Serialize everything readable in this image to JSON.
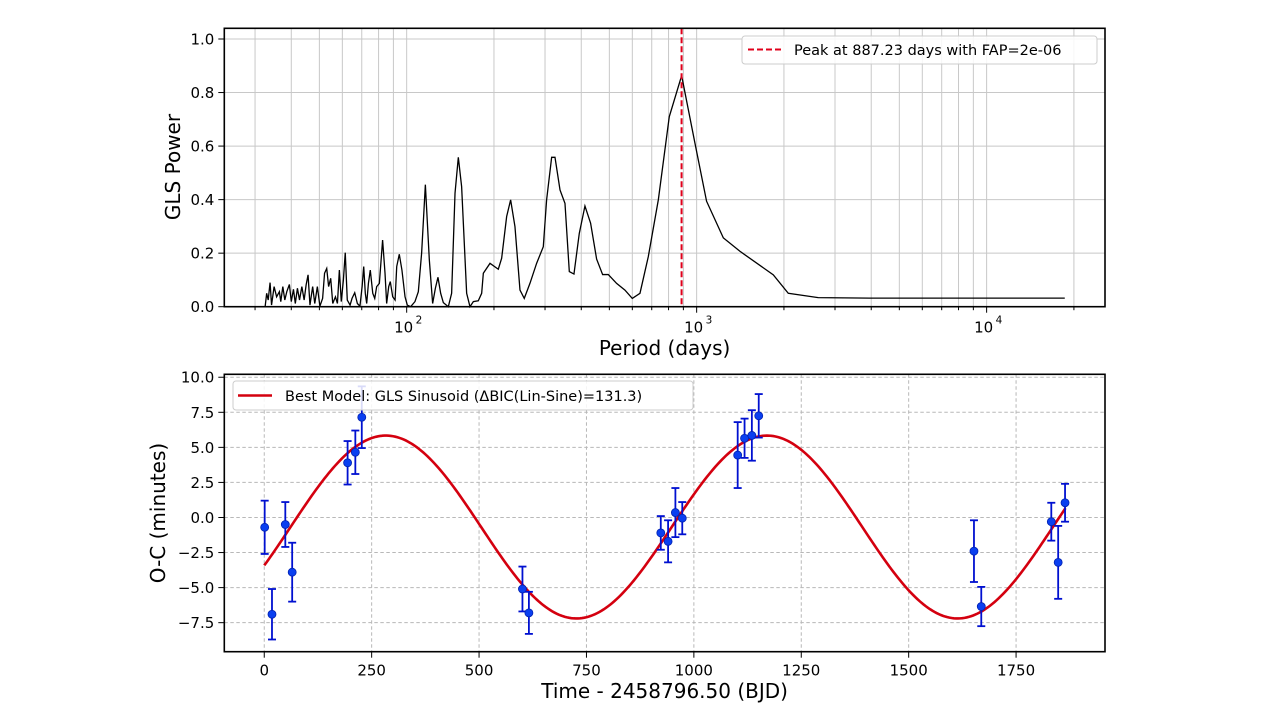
{
  "chart_data": [
    {
      "type": "line",
      "xlabel": "Period (days)",
      "ylabel": "GLS Power",
      "xscale": "log",
      "xlim": [
        23.5,
        25600
      ],
      "ylim": [
        0,
        1.04
      ],
      "xticks": [
        100,
        1000,
        10000
      ],
      "xtick_labels": [
        {
          "base": "10",
          "exp": "2"
        },
        {
          "base": "10",
          "exp": "3"
        },
        {
          "base": "10",
          "exp": "4"
        }
      ],
      "yticks": [
        0,
        0.2,
        0.4,
        0.6,
        0.8,
        1.0
      ],
      "ytick_labels": [
        "0.0",
        "0.2",
        "0.4",
        "0.6",
        "0.8",
        "1.0"
      ],
      "grid": true,
      "legend_position": "top-right",
      "line_color": "#000000",
      "peak": {
        "period": 887.23,
        "label": "Peak at 887.23 days with FAP=2e-06",
        "color": "#e0001b",
        "style": "dashed"
      },
      "series": [
        {
          "points": [
            [
              32.5,
              0.0
            ],
            [
              32.9,
              0.05
            ],
            [
              33.3,
              0.025
            ],
            [
              33.8,
              0.09
            ],
            [
              34.2,
              0.006
            ],
            [
              34.9,
              0.075
            ],
            [
              35.6,
              0.037
            ],
            [
              36.4,
              0.056
            ],
            [
              36.8,
              0.019
            ],
            [
              37.4,
              0.075
            ],
            [
              38.0,
              0.025
            ],
            [
              38.6,
              0.056
            ],
            [
              39.4,
              0.083
            ],
            [
              40.0,
              0.019
            ],
            [
              40.7,
              0.065
            ],
            [
              41.3,
              0.012
            ],
            [
              42.0,
              0.069
            ],
            [
              42.7,
              0.025
            ],
            [
              43.5,
              0.075
            ],
            [
              44.3,
              0.025
            ],
            [
              45.0,
              0.081
            ],
            [
              45.7,
              0.119
            ],
            [
              46.4,
              0.006
            ],
            [
              47.4,
              0.075
            ],
            [
              48.2,
              0.012
            ],
            [
              49.2,
              0.075
            ],
            [
              50.2,
              0.002
            ],
            [
              51.3,
              0.031
            ],
            [
              52.1,
              0.125
            ],
            [
              53.0,
              0.143
            ],
            [
              53.8,
              0.075
            ],
            [
              54.7,
              0.106
            ],
            [
              55.6,
              0.012
            ],
            [
              56.8,
              0.037
            ],
            [
              57.7,
              0.012
            ],
            [
              58.6,
              0.137
            ],
            [
              59.5,
              0.019
            ],
            [
              60.5,
              0.1
            ],
            [
              61.4,
              0.202
            ],
            [
              62.4,
              0.025
            ],
            [
              63.8,
              0.006
            ],
            [
              64.8,
              0.031
            ],
            [
              66.2,
              0.052
            ],
            [
              67.6,
              0.012
            ],
            [
              69.0,
              0.002
            ],
            [
              70.2,
              0.075
            ],
            [
              71.1,
              0.15
            ],
            [
              72.0,
              0.05
            ],
            [
              72.8,
              0.012
            ],
            [
              73.8,
              0.087
            ],
            [
              74.9,
              0.137
            ],
            [
              76.4,
              0.05
            ],
            [
              77.6,
              0.031
            ],
            [
              78.8,
              0.075
            ],
            [
              80.5,
              0.087
            ],
            [
              82.6,
              0.249
            ],
            [
              84.2,
              0.125
            ],
            [
              85.3,
              0.012
            ],
            [
              86.7,
              0.075
            ],
            [
              87.8,
              0.094
            ],
            [
              89.5,
              0.037
            ],
            [
              91.2,
              0.025
            ],
            [
              92.4,
              0.15
            ],
            [
              94.3,
              0.196
            ],
            [
              96.3,
              0.137
            ],
            [
              98.7,
              0.037
            ],
            [
              100.5,
              0.006
            ],
            [
              103.2,
              0.0
            ],
            [
              106.8,
              0.019
            ],
            [
              109.7,
              0.056
            ],
            [
              112.6,
              0.2
            ],
            [
              116.0,
              0.456
            ],
            [
              119.7,
              0.175
            ],
            [
              122.9,
              0.012
            ],
            [
              125.6,
              0.069
            ],
            [
              128.2,
              0.11
            ],
            [
              131.0,
              0.05
            ],
            [
              133.8,
              0.015
            ],
            [
              139.2,
              0.0
            ],
            [
              142.9,
              0.05
            ],
            [
              146.8,
              0.424
            ],
            [
              150.7,
              0.558
            ],
            [
              154.7,
              0.449
            ],
            [
              161.0,
              0.05
            ],
            [
              165.3,
              0.0
            ],
            [
              169.8,
              0.019
            ],
            [
              176.6,
              0.022
            ],
            [
              181.4,
              0.05
            ],
            [
              183.8,
              0.125
            ],
            [
              193.8,
              0.162
            ],
            [
              207.0,
              0.14
            ],
            [
              212.6,
              0.181
            ],
            [
              221.2,
              0.337
            ],
            [
              228.3,
              0.399
            ],
            [
              236.3,
              0.299
            ],
            [
              245.9,
              0.062
            ],
            [
              254.4,
              0.031
            ],
            [
              266.1,
              0.087
            ],
            [
              280.6,
              0.162
            ],
            [
              295.9,
              0.224
            ],
            [
              303.8,
              0.399
            ],
            [
              316.2,
              0.558
            ],
            [
              324.7,
              0.558
            ],
            [
              337.9,
              0.436
            ],
            [
              351.5,
              0.386
            ],
            [
              363.8,
              0.131
            ],
            [
              377.5,
              0.122
            ],
            [
              393.8,
              0.274
            ],
            [
              411.9,
              0.376
            ],
            [
              430.8,
              0.312
            ],
            [
              451.9,
              0.178
            ],
            [
              474.0,
              0.12
            ],
            [
              495.8,
              0.12
            ],
            [
              529.7,
              0.087
            ],
            [
              565.8,
              0.062
            ],
            [
              599.8,
              0.031
            ],
            [
              637.6,
              0.05
            ],
            [
              681.2,
              0.187
            ],
            [
              737.6,
              0.399
            ],
            [
              804.7,
              0.71
            ],
            [
              887.6,
              0.863
            ],
            [
              986.5,
              0.611
            ],
            [
              1082,
              0.394
            ],
            [
              1236,
              0.257
            ],
            [
              1410,
              0.207
            ],
            [
              1838,
              0.119
            ],
            [
              2070,
              0.05
            ],
            [
              2625,
              0.034
            ],
            [
              3950,
              0.032
            ],
            [
              18600,
              0.032
            ]
          ]
        }
      ]
    },
    {
      "type": "scatter",
      "xlabel": "Time - 2458796.50 (BJD)",
      "ylabel": "O-C (minutes)",
      "xlim": [
        -93,
        1957
      ],
      "ylim": [
        -9.57,
        10.21
      ],
      "xticks": [
        0,
        250,
        500,
        750,
        1000,
        1250,
        1500,
        1750
      ],
      "xtick_labels": [
        "0",
        "250",
        "500",
        "750",
        "1000",
        "1250",
        "1500",
        "1750"
      ],
      "yticks": [
        -7.5,
        -5.0,
        -2.5,
        0.0,
        2.5,
        5.0,
        7.5,
        10.0
      ],
      "ytick_labels": [
        "−7.5",
        "−5.0",
        "−2.5",
        "0.0",
        "2.5",
        "5.0",
        "7.5",
        "10.0"
      ],
      "grid": true,
      "grid_style": "dashed",
      "legend_position": "top-left",
      "point_color": "#0a3ff0",
      "errorbar_color": "#0010d0",
      "model": {
        "label": "Best Model: GLS Sinusoid (ΔBIC(Lin-Sine)=131.3)",
        "color": "#d4000f",
        "period": 887.23,
        "amplitude": 6.52,
        "offset": -0.68,
        "t_max": 283,
        "t_range": [
          0,
          1865
        ]
      },
      "points": [
        {
          "t": 1,
          "oc": -0.7,
          "err": 1.9
        },
        {
          "t": 18,
          "oc": -6.9,
          "err": 1.8
        },
        {
          "t": 49,
          "oc": -0.5,
          "err": 1.6
        },
        {
          "t": 65,
          "oc": -3.9,
          "err": 2.1
        },
        {
          "t": 194,
          "oc": 3.9,
          "err": 1.55
        },
        {
          "t": 212,
          "oc": 4.65,
          "err": 1.55
        },
        {
          "t": 227,
          "oc": 7.15,
          "err": 2.2
        },
        {
          "t": 601,
          "oc": -5.1,
          "err": 1.6
        },
        {
          "t": 616,
          "oc": -6.8,
          "err": 1.5
        },
        {
          "t": 923,
          "oc": -1.1,
          "err": 1.2
        },
        {
          "t": 940,
          "oc": -1.7,
          "err": 1.5
        },
        {
          "t": 957,
          "oc": 0.35,
          "err": 1.75
        },
        {
          "t": 973,
          "oc": -0.05,
          "err": 1.15
        },
        {
          "t": 1102,
          "oc": 4.45,
          "err": 2.35
        },
        {
          "t": 1118,
          "oc": 5.65,
          "err": 1.4
        },
        {
          "t": 1135,
          "oc": 5.85,
          "err": 1.8
        },
        {
          "t": 1151,
          "oc": 7.25,
          "err": 1.55
        },
        {
          "t": 1652,
          "oc": -2.4,
          "err": 2.2
        },
        {
          "t": 1669,
          "oc": -6.35,
          "err": 1.4
        },
        {
          "t": 1832,
          "oc": -0.3,
          "err": 1.35
        },
        {
          "t": 1848,
          "oc": -3.2,
          "err": 2.6
        },
        {
          "t": 1864,
          "oc": 1.05,
          "err": 1.35
        }
      ]
    }
  ]
}
